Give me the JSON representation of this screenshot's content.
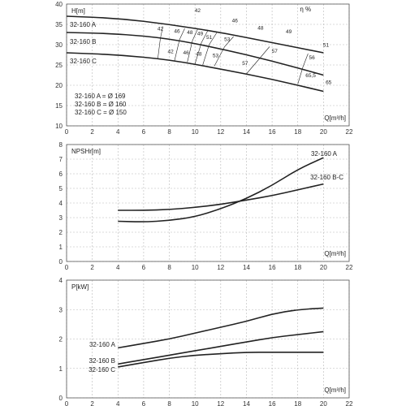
{
  "chart_data": [
    {
      "type": "line",
      "ylabel": "H[m]",
      "xlabel": "Q[m³/h]",
      "xlim": [
        0,
        22
      ],
      "ylim": [
        10,
        40
      ],
      "xticks": [
        0,
        2,
        4,
        6,
        8,
        10,
        12,
        14,
        16,
        18,
        20,
        22
      ],
      "yticks": [
        10,
        15,
        20,
        25,
        30,
        35,
        40
      ],
      "grid": true,
      "series": [
        {
          "name": "32-160 A",
          "x": [
            0,
            4,
            8,
            12,
            16,
            20
          ],
          "y": [
            37.0,
            36.5,
            35.0,
            33.0,
            30.5,
            28.0
          ]
        },
        {
          "name": "32-160 B",
          "x": [
            0,
            4,
            8,
            12,
            16,
            20
          ],
          "y": [
            33.0,
            32.7,
            31.5,
            29.0,
            26.0,
            22.5
          ]
        },
        {
          "name": "32-160 C",
          "x": [
            0,
            4,
            8,
            12,
            16,
            20
          ],
          "y": [
            28.0,
            27.5,
            26.3,
            24.0,
            21.5,
            18.5
          ]
        }
      ],
      "efficiency": {
        "symbol": "η %",
        "curves": [
          {
            "label": "42",
            "points": [
              [
                7.5,
                34.5
              ],
              [
                7.3,
                31.5
              ],
              [
                7.1,
                26.5
              ]
            ]
          },
          {
            "label": "46",
            "points": [
              [
                9.2,
                34.0
              ],
              [
                8.8,
                31.3
              ],
              [
                8.4,
                26.0
              ]
            ]
          },
          {
            "label": "48",
            "points": [
              [
                10.2,
                33.8
              ],
              [
                9.8,
                31.0
              ],
              [
                9.4,
                25.7
              ]
            ]
          },
          {
            "label": "49",
            "points": [
              [
                11.0,
                33.5
              ],
              [
                10.5,
                30.5
              ],
              [
                10.0,
                25.3
              ]
            ]
          },
          {
            "label": "51",
            "points": [
              [
                11.7,
                33.0
              ],
              [
                11.1,
                30.0
              ],
              [
                10.6,
                25.0
              ]
            ]
          },
          {
            "label": "53",
            "points": [
              [
                13.0,
                32.0
              ],
              [
                12.3,
                29.5
              ],
              [
                11.5,
                24.7
              ]
            ]
          },
          {
            "label": "57",
            "points": [
              [
                15.8,
                29.5
              ],
              [
                15.0,
                26.5
              ],
              [
                14.0,
                22.8
              ]
            ]
          },
          {
            "label": "65,5",
            "points": [
              [
                18.8,
                27.8
              ],
              [
                18.4,
                24.5
              ],
              [
                18.0,
                20.3
              ]
            ]
          }
        ],
        "labels": [
          {
            "text": "42",
            "x": 7.3,
            "y": 33.5
          },
          {
            "text": "46",
            "x": 8.6,
            "y": 32.9
          },
          {
            "text": "48",
            "x": 9.6,
            "y": 32.6
          },
          {
            "text": "49",
            "x": 10.4,
            "y": 32.3
          },
          {
            "text": "51",
            "x": 11.1,
            "y": 31.4
          },
          {
            "text": "53",
            "x": 12.5,
            "y": 30.9
          },
          {
            "text": "42",
            "x": 8.1,
            "y": 27.9
          },
          {
            "text": "46",
            "x": 9.3,
            "y": 27.6
          },
          {
            "text": "48",
            "x": 10.3,
            "y": 27.3
          },
          {
            "text": "53",
            "x": 11.6,
            "y": 26.9
          },
          {
            "text": "57",
            "x": 13.9,
            "y": 25.0
          },
          {
            "text": "57",
            "x": 16.2,
            "y": 28.0
          },
          {
            "text": "42",
            "x": 10.2,
            "y": 38.0
          },
          {
            "text": "46",
            "x": 13.1,
            "y": 35.5
          },
          {
            "text": "48",
            "x": 15.1,
            "y": 33.7
          },
          {
            "text": "49",
            "x": 17.3,
            "y": 32.8
          },
          {
            "text": "51",
            "x": 20.2,
            "y": 29.5
          },
          {
            "text": "56",
            "x": 19.1,
            "y": 26.4
          },
          {
            "text": "65,5",
            "x": 19.0,
            "y": 22.0
          },
          {
            "text": "65",
            "x": 20.4,
            "y": 20.3
          }
        ]
      },
      "annotations": [
        "32-160 A = Ø 169",
        "32-160 B = Ø 160",
        "32-160 C = Ø 150"
      ]
    },
    {
      "type": "line",
      "ylabel": "NPSHr[m]",
      "xlabel": "Q[m³/h]",
      "xlim": [
        0,
        22
      ],
      "ylim": [
        0,
        8
      ],
      "xticks": [
        0,
        2,
        4,
        6,
        8,
        10,
        12,
        14,
        16,
        18,
        20,
        22
      ],
      "yticks": [
        0,
        1,
        2,
        3,
        4,
        5,
        6,
        7,
        8
      ],
      "grid": true,
      "series": [
        {
          "name": "32-160 A",
          "x": [
            4,
            6,
            8,
            10,
            12,
            14,
            16,
            18,
            20
          ],
          "y": [
            2.75,
            2.7,
            2.8,
            3.05,
            3.6,
            4.3,
            5.2,
            6.3,
            7.1
          ]
        },
        {
          "name": "32-160 B-C",
          "x": [
            4,
            6,
            8,
            10,
            12,
            14,
            16,
            18,
            20
          ],
          "y": [
            3.5,
            3.5,
            3.55,
            3.7,
            3.9,
            4.2,
            4.5,
            4.9,
            5.3
          ]
        }
      ]
    },
    {
      "type": "line",
      "ylabel": "P[kW]",
      "xlabel": "Q[m³/h]",
      "xlim": [
        0,
        22
      ],
      "ylim": [
        0,
        4
      ],
      "xticks": [
        0,
        2,
        4,
        6,
        8,
        10,
        12,
        14,
        16,
        18,
        20,
        22
      ],
      "yticks": [
        0,
        1,
        2,
        3,
        4
      ],
      "grid": true,
      "series": [
        {
          "name": "32-160 A",
          "x": [
            4,
            6,
            8,
            10,
            12,
            14,
            16,
            18,
            20
          ],
          "y": [
            1.7,
            1.85,
            2.0,
            2.2,
            2.4,
            2.6,
            2.85,
            3.0,
            3.05
          ]
        },
        {
          "name": "32-160 B",
          "x": [
            4,
            6,
            8,
            10,
            12,
            14,
            16,
            18,
            20
          ],
          "y": [
            1.15,
            1.3,
            1.45,
            1.6,
            1.75,
            1.9,
            2.05,
            2.15,
            2.25
          ]
        },
        {
          "name": "32-160 C",
          "x": [
            4,
            6,
            8,
            10,
            12,
            14,
            16,
            18,
            20
          ],
          "y": [
            1.05,
            1.2,
            1.35,
            1.45,
            1.5,
            1.55,
            1.55,
            1.55,
            1.55
          ]
        }
      ]
    }
  ]
}
